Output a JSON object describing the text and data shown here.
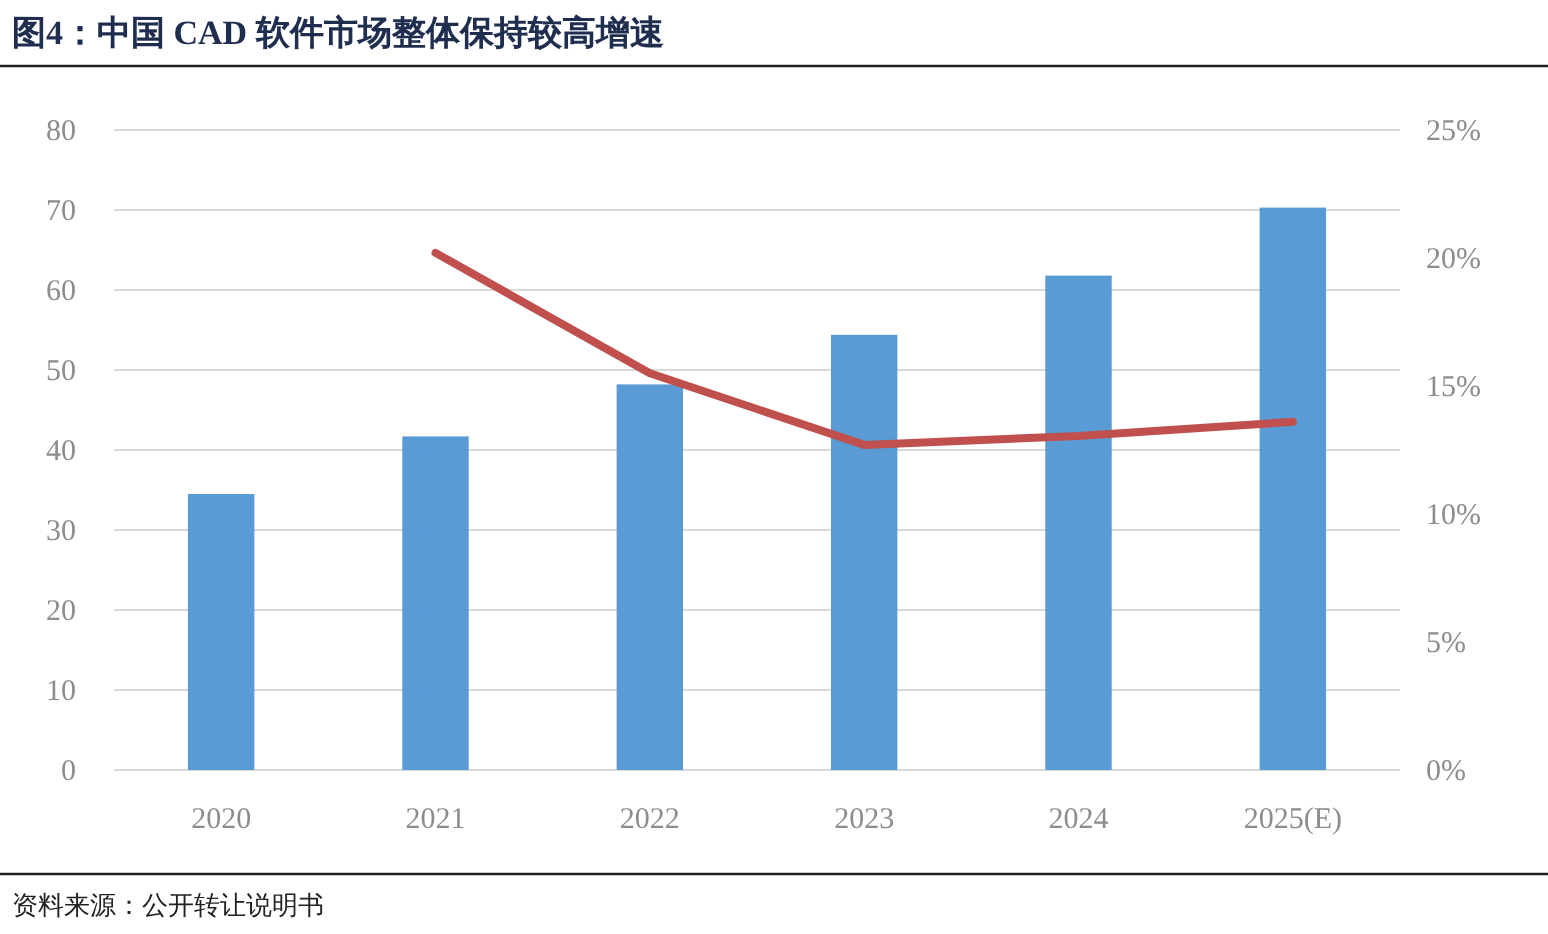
{
  "chart_data": {
    "type": "bar",
    "title": "图4：中国 CAD 软件市场整体保持较高增速",
    "categories": [
      "2020",
      "2021",
      "2022",
      "2023",
      "2024",
      "2025(E)"
    ],
    "series": [
      {
        "color": "#5b9bd5",
        "values": [
          34.5,
          41.7,
          48.2,
          54.4,
          61.8,
          70.3
        ]
      },
      {
        "type": "line",
        "axis": "y2",
        "color": "#c0504d",
        "values": [
          null,
          20.2,
          15.5,
          12.7,
          13.05,
          13.6
        ]
      }
    ],
    "ylim": [
      0,
      80
    ],
    "yticks": [
      0,
      10,
      20,
      30,
      40,
      50,
      60,
      70,
      80
    ],
    "y2lim": [
      0,
      25
    ],
    "y2ticks": [
      {
        "value": 0,
        "label": "0%"
      },
      {
        "value": 5,
        "label": "5%"
      },
      {
        "value": 10,
        "label": "10%"
      },
      {
        "value": 15,
        "label": "15%"
      },
      {
        "value": 20,
        "label": "20%"
      },
      {
        "value": 25,
        "label": "25%"
      }
    ],
    "grid": "y",
    "annotations": [
      "资料来源：公开转让说明书"
    ]
  }
}
